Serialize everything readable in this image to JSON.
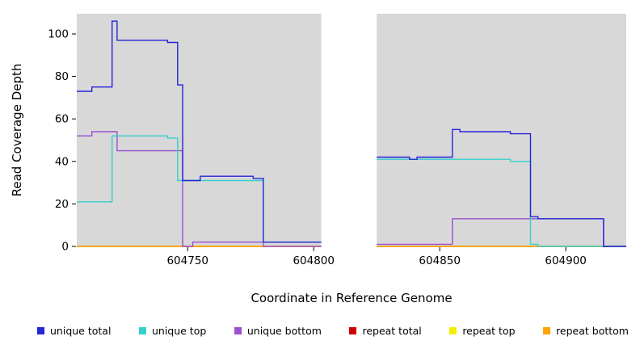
{
  "chart_data": {
    "type": "line",
    "interpolation": "step-after",
    "title": "",
    "xlabel": "Coordinate in Reference Genome",
    "ylabel": "Read Coverage Depth",
    "xlim": [
      604706,
      604924
    ],
    "ylim": [
      0,
      109.5
    ],
    "x_ticks": [
      604750,
      604800,
      604850,
      604900
    ],
    "y_ticks": [
      0,
      20,
      40,
      60,
      80,
      100
    ],
    "grid": false,
    "legend_position": "bottom",
    "panel_color": "#d8d8d8",
    "panels": [
      [
        604706,
        604803
      ],
      [
        604825,
        604924
      ]
    ],
    "series": [
      {
        "name": "repeat total",
        "color": "#cc0000",
        "segments": [
          [
            [
              604706,
              0
            ],
            [
              604803,
              0
            ]
          ],
          [
            [
              604825,
              0
            ],
            [
              604924,
              0
            ]
          ]
        ]
      },
      {
        "name": "repeat top",
        "color": "#f0f000",
        "segments": [
          [
            [
              604706,
              0
            ],
            [
              604803,
              0
            ]
          ],
          [
            [
              604825,
              0
            ],
            [
              604924,
              0
            ]
          ]
        ]
      },
      {
        "name": "repeat bottom",
        "color": "#ffa500",
        "segments": [
          [
            [
              604706,
              0
            ],
            [
              604803,
              0
            ]
          ],
          [
            [
              604825,
              0
            ],
            [
              604924,
              0
            ]
          ]
        ]
      },
      {
        "name": "unique bottom",
        "color": "#9b4fd0",
        "segments": [
          [
            [
              604706,
              52
            ],
            [
              604712,
              54
            ],
            [
              604722,
              45
            ],
            [
              604748,
              0
            ],
            [
              604752,
              2
            ],
            [
              604780,
              0
            ],
            [
              604803,
              0
            ]
          ],
          [
            [
              604825,
              1
            ],
            [
              604855,
              13
            ],
            [
              604915,
              0
            ],
            [
              604924,
              0
            ]
          ]
        ]
      },
      {
        "name": "unique top",
        "color": "#35d0cb",
        "segments": [
          [
            [
              604706,
              21
            ],
            [
              604720,
              52
            ],
            [
              604742,
              51
            ],
            [
              604746,
              31
            ],
            [
              604780,
              2
            ],
            [
              604803,
              2
            ]
          ],
          [
            [
              604825,
              41
            ],
            [
              604878,
              40
            ],
            [
              604886,
              1
            ],
            [
              604889,
              0
            ],
            [
              604924,
              0
            ]
          ]
        ]
      },
      {
        "name": "unique total",
        "color": "#2424d8",
        "segments": [
          [
            [
              604706,
              73
            ],
            [
              604712,
              75
            ],
            [
              604720,
              106
            ],
            [
              604722,
              97
            ],
            [
              604742,
              96
            ],
            [
              604746,
              76
            ],
            [
              604748,
              31
            ],
            [
              604755,
              33
            ],
            [
              604776,
              32
            ],
            [
              604780,
              2
            ],
            [
              604803,
              2
            ]
          ],
          [
            [
              604825,
              42
            ],
            [
              604838,
              41
            ],
            [
              604841,
              42
            ],
            [
              604855,
              55
            ],
            [
              604858,
              54
            ],
            [
              604878,
              53
            ],
            [
              604886,
              14
            ],
            [
              604889,
              13
            ],
            [
              604915,
              0
            ],
            [
              604924,
              0
            ]
          ]
        ]
      }
    ],
    "legend": [
      {
        "label": "unique total",
        "color": "#2424d8"
      },
      {
        "label": "unique top",
        "color": "#35d0cb"
      },
      {
        "label": "unique bottom",
        "color": "#9b4fd0"
      },
      {
        "label": "repeat total",
        "color": "#cc0000"
      },
      {
        "label": "repeat top",
        "color": "#f0f000"
      },
      {
        "label": "repeat bottom",
        "color": "#ffa500"
      }
    ]
  }
}
